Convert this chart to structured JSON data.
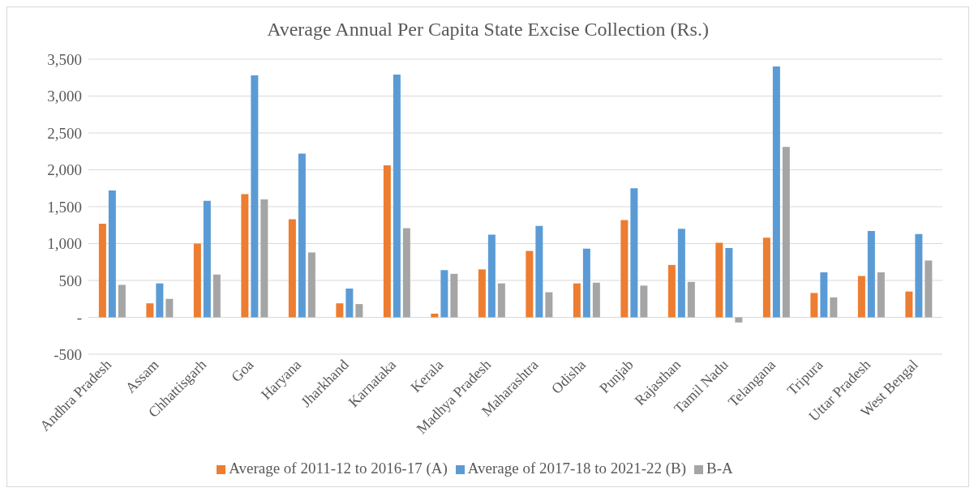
{
  "chart_data": {
    "type": "bar",
    "title": "Average Annual Per Capita State Excise Collection (Rs.)",
    "categories": [
      "Andhra Pradesh",
      "Assam",
      "Chhattisgarh",
      "Goa",
      "Haryana",
      "Jharkhand",
      "Karnataka",
      "Kerala",
      "Madhya Pradesh",
      "Maharashtra",
      "Odisha",
      "Punjab",
      "Rajasthan",
      "Tamil Nadu",
      "Telangana",
      "Tripura",
      "Uttar Pradesh",
      "West Bengal"
    ],
    "series": [
      {
        "name": "Average of 2011-12 to 2016-17 (A)",
        "color": "#ed7d31",
        "values": [
          1270,
          190,
          1000,
          1670,
          1330,
          190,
          2060,
          50,
          650,
          900,
          460,
          1320,
          710,
          1010,
          1080,
          330,
          560,
          350
        ]
      },
      {
        "name": "Average of 2017-18 to 2021-22 (B)",
        "color": "#5b9bd5",
        "values": [
          1720,
          460,
          1580,
          3280,
          2220,
          390,
          3290,
          640,
          1120,
          1240,
          930,
          1750,
          1200,
          940,
          3400,
          610,
          1170,
          1130
        ]
      },
      {
        "name": "B-A",
        "color": "#a5a5a5",
        "values": [
          440,
          250,
          580,
          1600,
          880,
          180,
          1210,
          590,
          460,
          340,
          470,
          430,
          480,
          -70,
          2310,
          270,
          610,
          770
        ]
      }
    ],
    "ylim": [
      -500,
      3500
    ],
    "yticks": [
      -500,
      {
        "value": 0,
        "label": "-"
      },
      500,
      {
        "value": 1000,
        "label": "1,000"
      },
      {
        "value": 1500,
        "label": "1,500"
      },
      {
        "value": 2000,
        "label": "2,000"
      },
      {
        "value": 2500,
        "label": "2,500"
      },
      {
        "value": 3000,
        "label": "3,000"
      },
      {
        "value": 3500,
        "label": "3,500"
      }
    ],
    "grid": "y",
    "legend": "bottom"
  }
}
